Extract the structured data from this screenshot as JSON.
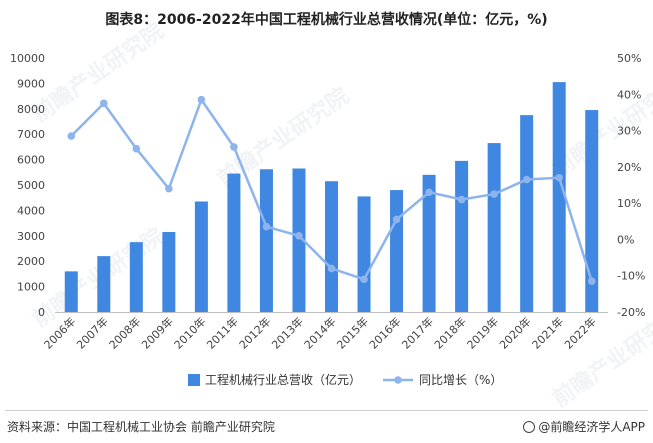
{
  "title": "图表8：2006-2022年中国工程机械行业总营收情况(单位：亿元，%)",
  "chart_data": {
    "type": "bar",
    "categories": [
      "2006年",
      "2007年",
      "2008年",
      "2009年",
      "2010年",
      "2011年",
      "2012年",
      "2013年",
      "2014年",
      "2015年",
      "2016年",
      "2017年",
      "2018年",
      "2019年",
      "2020年",
      "2021年",
      "2022年"
    ],
    "series": [
      {
        "name": "工程机械行业总营收（亿元）",
        "type": "bar",
        "axis": "left",
        "values": [
          1600,
          2200,
          2750,
          3150,
          4350,
          5450,
          5620,
          5650,
          5150,
          4550,
          4800,
          5400,
          5950,
          6650,
          7750,
          9050,
          7950
        ]
      },
      {
        "name": "同比增长（%）",
        "type": "line",
        "axis": "right",
        "values": [
          28.5,
          37.5,
          25,
          14,
          38.5,
          25.5,
          3.5,
          1,
          -8,
          -11,
          5.5,
          13,
          11,
          12.5,
          16.5,
          17,
          -11.5
        ]
      }
    ],
    "y_left": {
      "min": 0,
      "max": 10000,
      "step": 1000,
      "ticks": [
        "0",
        "1000",
        "2000",
        "3000",
        "4000",
        "5000",
        "6000",
        "7000",
        "8000",
        "9000",
        "10000"
      ]
    },
    "y_right": {
      "min": -20,
      "max": 50,
      "step": 10,
      "ticks": [
        "-20%",
        "-10%",
        "0%",
        "10%",
        "20%",
        "30%",
        "40%",
        "50%"
      ]
    },
    "legend_position": "bottom",
    "grid": false,
    "colors": {
      "bar": "#3f87e0",
      "line": "#8db4ec"
    }
  },
  "watermark": "前瞻产业研究院",
  "footer": {
    "source": "资料来源：中国工程机械工业协会 前瞻产业研究院",
    "brand": "@前瞻经济学人APP"
  }
}
